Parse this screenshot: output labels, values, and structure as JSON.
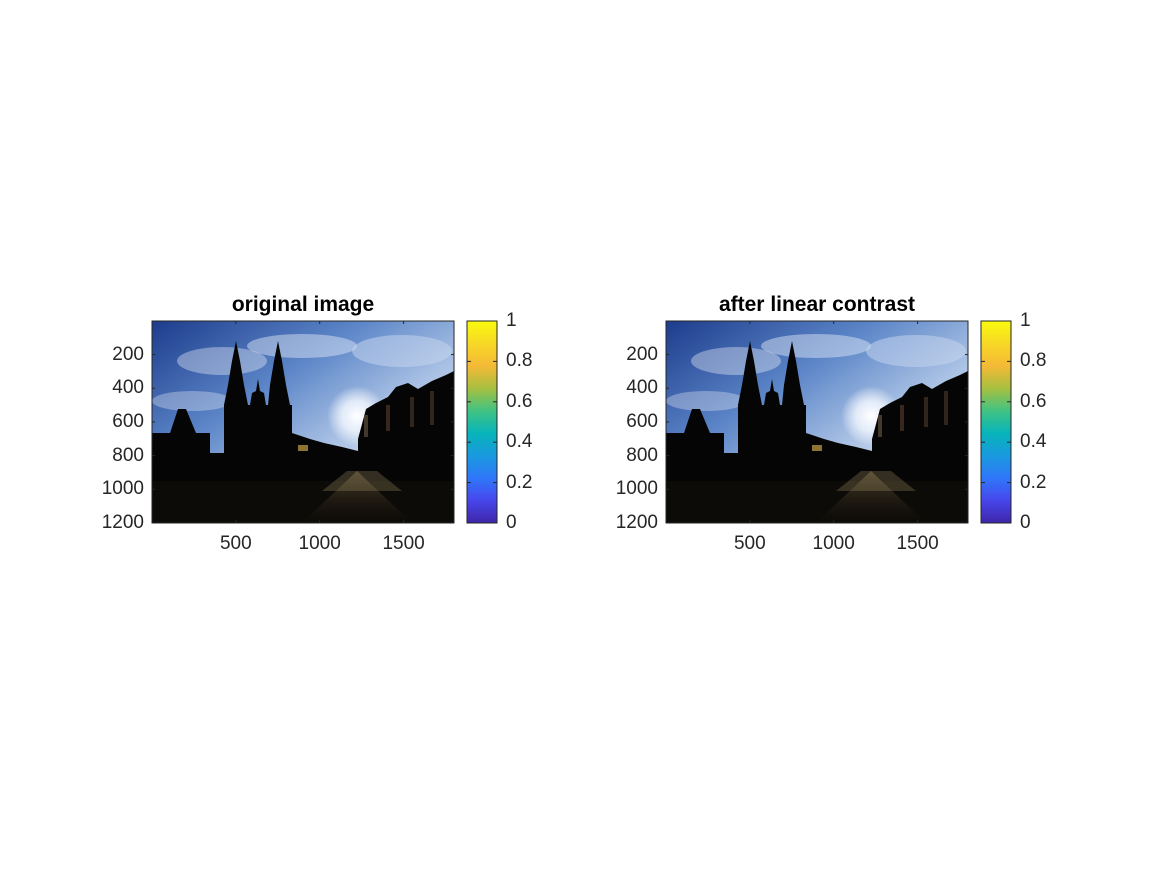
{
  "chart_data": [
    {
      "type": "heatmap",
      "title": "original image",
      "xlim": [
        0.5,
        1800.5
      ],
      "ylim": [
        0.5,
        1200.5
      ],
      "y_reversed": true,
      "xticks": [
        500,
        1000,
        1500
      ],
      "yticks": [
        200,
        400,
        600,
        800,
        1000,
        1200
      ],
      "colorbar": {
        "colormap": "parula",
        "range": [
          0,
          1
        ],
        "ticks": [
          0,
          0.2,
          0.4,
          0.6,
          0.8,
          1
        ],
        "tick_labels": [
          "0",
          "0.2",
          "0.4",
          "0.6",
          "0.8",
          "1"
        ]
      }
    },
    {
      "type": "heatmap",
      "title": "after linear contrast",
      "xlim": [
        0.5,
        1800.5
      ],
      "ylim": [
        0.5,
        1200.5
      ],
      "y_reversed": true,
      "xticks": [
        500,
        1000,
        1500
      ],
      "yticks": [
        200,
        400,
        600,
        800,
        1000,
        1200
      ],
      "colorbar": {
        "colormap": "parula",
        "range": [
          0,
          1
        ],
        "ticks": [
          0,
          0.2,
          0.4,
          0.6,
          0.8,
          1
        ],
        "tick_labels": [
          "0",
          "0.2",
          "0.4",
          "0.6",
          "0.8",
          "1"
        ]
      }
    }
  ],
  "colors": {
    "parula_stops": [
      "#3e26a8",
      "#4746eb",
      "#2f77fa",
      "#1999de",
      "#07b4bb",
      "#41c383",
      "#a8bf3f",
      "#f4b936",
      "#f8d826",
      "#f9fb0e"
    ]
  }
}
